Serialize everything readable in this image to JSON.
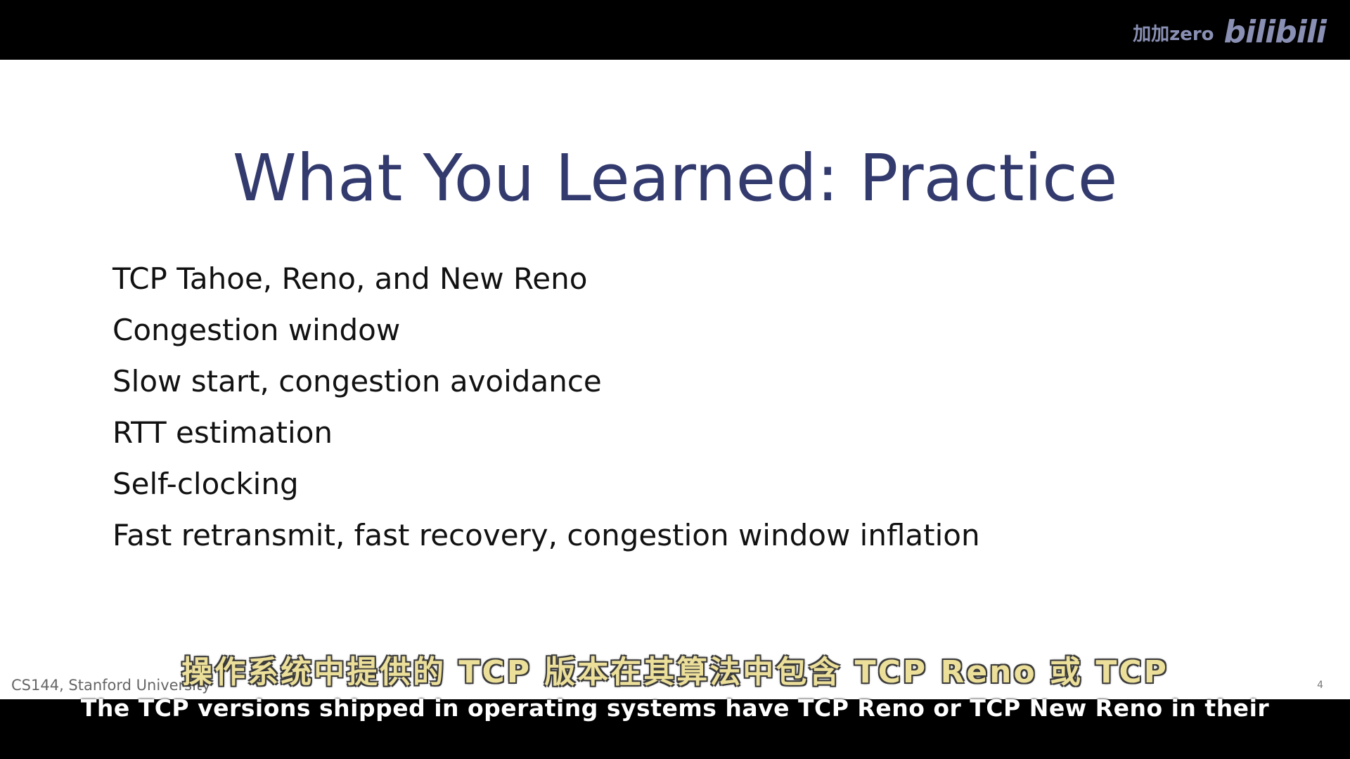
{
  "watermark": {
    "user": "加加zero",
    "logo": "bilibili"
  },
  "slide": {
    "title": "What You Learned: Practice",
    "bullets": [
      "TCP Tahoe, Reno, and New Reno",
      "Congestion window",
      "Slow start, congestion avoidance",
      "RTT estimation",
      "Self-clocking",
      "Fast retransmit, fast recovery, congestion window inflation"
    ],
    "footer": "CS144, Stanford University",
    "page_number": "4"
  },
  "subtitles": {
    "chinese": "操作系统中提供的 TCP 版本在其算法中包含 TCP Reno 或 TCP",
    "english": "The TCP versions shipped in operating systems have TCP Reno or TCP New Reno in their"
  }
}
